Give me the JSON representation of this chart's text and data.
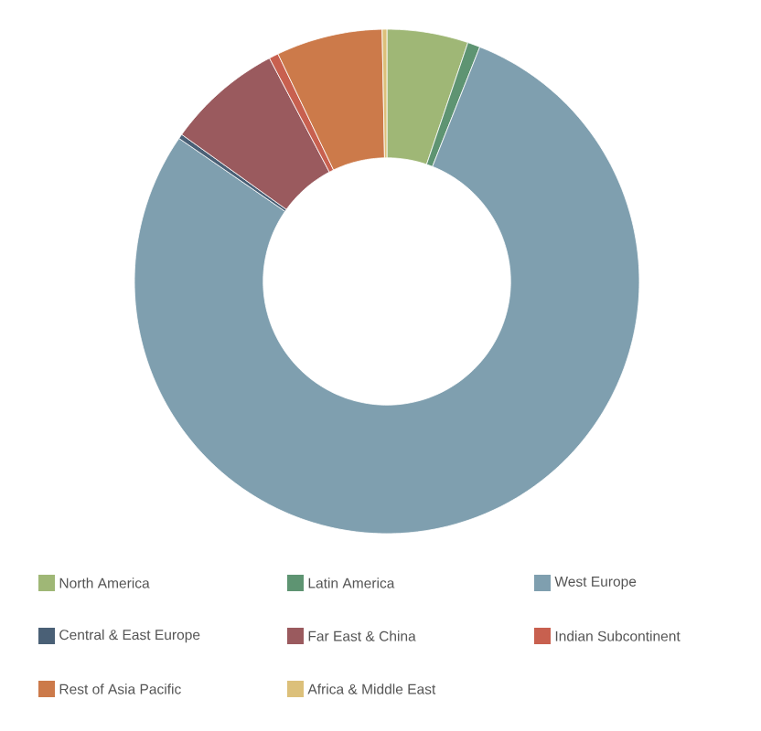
{
  "chart_data": {
    "type": "donut",
    "categories": [
      "North America",
      "Latin America",
      "West Europe",
      "Central & East Europe",
      "Far East & China",
      "Indian Subcontinent",
      "Rest of Asia Pacific",
      "Africa & Middle East"
    ],
    "values": [
      5.2,
      0.8,
      78.6,
      0.3,
      7.4,
      0.6,
      6.8,
      0.3
    ],
    "colors": [
      "#9fb776",
      "#5e9472",
      "#7f9faf",
      "#4a6076",
      "#9a5a5e",
      "#c8604f",
      "#cc7a4a",
      "#dcc07a"
    ],
    "legend": "bottom"
  }
}
